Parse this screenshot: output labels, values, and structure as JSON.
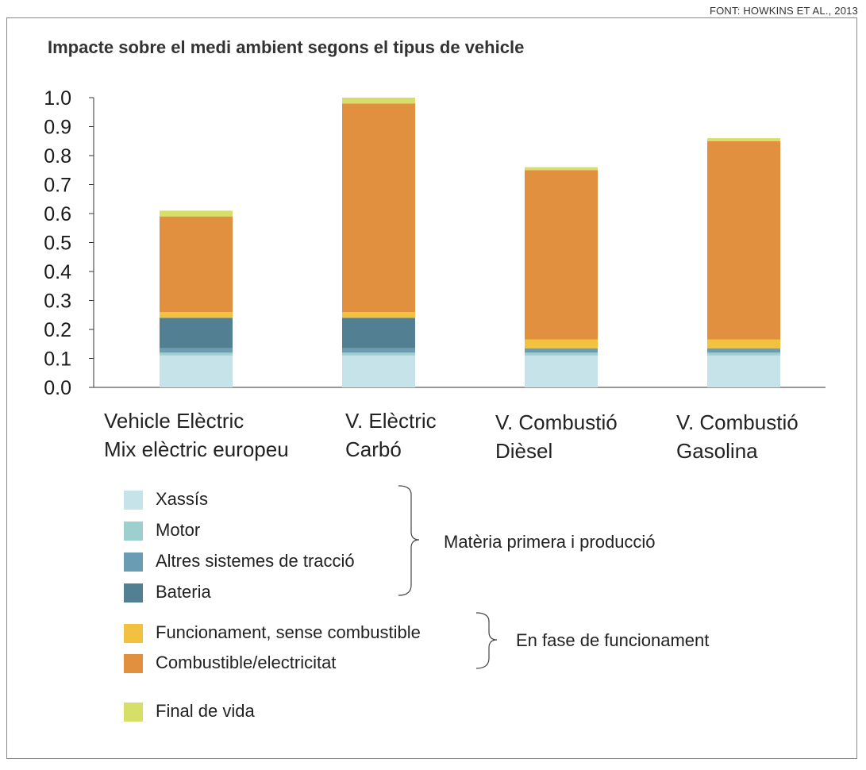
{
  "source": "FONT: HOWKINS ET AL., 2013",
  "chart_data": {
    "type": "bar",
    "stacked": true,
    "title": "Impacte sobre el medi ambient segons el tipus de vehicle",
    "ylim": [
      0,
      1.0
    ],
    "yticks": [
      "0.0",
      "0.1",
      "0.2",
      "0.3",
      "0.4",
      "0.5",
      "0.6",
      "0.7",
      "0.8",
      "0.9",
      "1.0"
    ],
    "grid": false,
    "categories": [
      [
        "Vehicle Elèctric",
        "Mix elèctric europeu"
      ],
      [
        "V. Elèctric",
        "Carbó"
      ],
      [
        "V. Combustió",
        "Dièsel"
      ],
      [
        "V. Combustió",
        "Gasolina"
      ]
    ],
    "series": [
      {
        "name": "Xassís",
        "color": "#c6e3ea",
        "values": [
          0.11,
          0.11,
          0.11,
          0.11
        ]
      },
      {
        "name": "Motor",
        "color": "#9ecfcf",
        "values": [
          0.01,
          0.01,
          0.01,
          0.01
        ]
      },
      {
        "name": "Altres sistemes de tracció",
        "color": "#6a9db4",
        "values": [
          0.015,
          0.015,
          0.015,
          0.015
        ]
      },
      {
        "name": "Bateria",
        "color": "#537f92",
        "values": [
          0.105,
          0.105,
          0.0,
          0.0
        ]
      },
      {
        "name": "Funcionament, sense combustible",
        "color": "#f2c140",
        "values": [
          0.02,
          0.02,
          0.03,
          0.03
        ]
      },
      {
        "name": "Combustible/electricitat",
        "color": "#e0903e",
        "values": [
          0.33,
          0.72,
          0.585,
          0.685
        ]
      },
      {
        "name": "Final de vida",
        "color": "#d6e068",
        "values": [
          0.02,
          0.02,
          0.01,
          0.01
        ]
      }
    ],
    "legend_groups": [
      {
        "label": "Matèria primera i producció",
        "series": [
          0,
          1,
          2,
          3
        ]
      },
      {
        "label": "En fase de funcionament",
        "series": [
          4,
          5
        ]
      },
      {
        "label": "",
        "series": [
          6
        ]
      }
    ]
  }
}
